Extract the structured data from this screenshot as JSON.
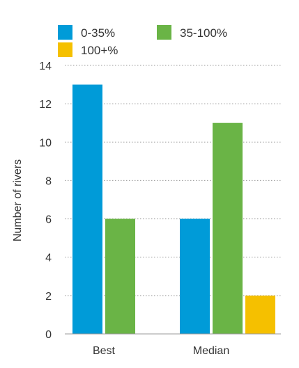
{
  "chart_data": {
    "type": "bar",
    "categories": [
      "Best",
      "Median"
    ],
    "series": [
      {
        "name": "0-35%",
        "values": [
          13,
          6
        ],
        "color": "#009bd8"
      },
      {
        "name": "35-100%",
        "values": [
          6,
          11
        ],
        "color": "#6ab446"
      },
      {
        "name": "100+%",
        "values": [
          0,
          2
        ],
        "color": "#f5c000"
      }
    ],
    "ylabel": "Number of rivers",
    "ylim": [
      0,
      14
    ],
    "yticks": [
      0,
      2,
      4,
      6,
      8,
      10,
      12,
      14
    ],
    "grid": true,
    "legend_position": "top-left"
  }
}
